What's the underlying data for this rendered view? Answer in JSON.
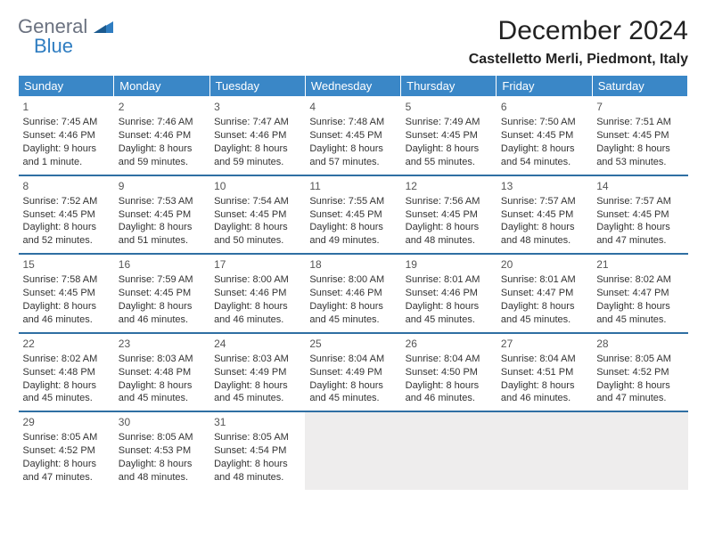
{
  "logo": {
    "general": "General",
    "blue": "Blue"
  },
  "title": "December 2024",
  "location": "Castelletto Merli, Piedmont, Italy",
  "colors": {
    "header_bg": "#3a87c7",
    "header_text": "#ffffff",
    "row_border": "#2f6fa3",
    "empty_bg": "#eeeded",
    "logo_gray": "#6b7280",
    "logo_blue": "#2f7dc1"
  },
  "weekdays": [
    "Sunday",
    "Monday",
    "Tuesday",
    "Wednesday",
    "Thursday",
    "Friday",
    "Saturday"
  ],
  "weeks": [
    [
      {
        "day": "1",
        "sunrise": "Sunrise: 7:45 AM",
        "sunset": "Sunset: 4:46 PM",
        "daylight": "Daylight: 9 hours and 1 minute."
      },
      {
        "day": "2",
        "sunrise": "Sunrise: 7:46 AM",
        "sunset": "Sunset: 4:46 PM",
        "daylight": "Daylight: 8 hours and 59 minutes."
      },
      {
        "day": "3",
        "sunrise": "Sunrise: 7:47 AM",
        "sunset": "Sunset: 4:46 PM",
        "daylight": "Daylight: 8 hours and 59 minutes."
      },
      {
        "day": "4",
        "sunrise": "Sunrise: 7:48 AM",
        "sunset": "Sunset: 4:45 PM",
        "daylight": "Daylight: 8 hours and 57 minutes."
      },
      {
        "day": "5",
        "sunrise": "Sunrise: 7:49 AM",
        "sunset": "Sunset: 4:45 PM",
        "daylight": "Daylight: 8 hours and 55 minutes."
      },
      {
        "day": "6",
        "sunrise": "Sunrise: 7:50 AM",
        "sunset": "Sunset: 4:45 PM",
        "daylight": "Daylight: 8 hours and 54 minutes."
      },
      {
        "day": "7",
        "sunrise": "Sunrise: 7:51 AM",
        "sunset": "Sunset: 4:45 PM",
        "daylight": "Daylight: 8 hours and 53 minutes."
      }
    ],
    [
      {
        "day": "8",
        "sunrise": "Sunrise: 7:52 AM",
        "sunset": "Sunset: 4:45 PM",
        "daylight": "Daylight: 8 hours and 52 minutes."
      },
      {
        "day": "9",
        "sunrise": "Sunrise: 7:53 AM",
        "sunset": "Sunset: 4:45 PM",
        "daylight": "Daylight: 8 hours and 51 minutes."
      },
      {
        "day": "10",
        "sunrise": "Sunrise: 7:54 AM",
        "sunset": "Sunset: 4:45 PM",
        "daylight": "Daylight: 8 hours and 50 minutes."
      },
      {
        "day": "11",
        "sunrise": "Sunrise: 7:55 AM",
        "sunset": "Sunset: 4:45 PM",
        "daylight": "Daylight: 8 hours and 49 minutes."
      },
      {
        "day": "12",
        "sunrise": "Sunrise: 7:56 AM",
        "sunset": "Sunset: 4:45 PM",
        "daylight": "Daylight: 8 hours and 48 minutes."
      },
      {
        "day": "13",
        "sunrise": "Sunrise: 7:57 AM",
        "sunset": "Sunset: 4:45 PM",
        "daylight": "Daylight: 8 hours and 48 minutes."
      },
      {
        "day": "14",
        "sunrise": "Sunrise: 7:57 AM",
        "sunset": "Sunset: 4:45 PM",
        "daylight": "Daylight: 8 hours and 47 minutes."
      }
    ],
    [
      {
        "day": "15",
        "sunrise": "Sunrise: 7:58 AM",
        "sunset": "Sunset: 4:45 PM",
        "daylight": "Daylight: 8 hours and 46 minutes."
      },
      {
        "day": "16",
        "sunrise": "Sunrise: 7:59 AM",
        "sunset": "Sunset: 4:45 PM",
        "daylight": "Daylight: 8 hours and 46 minutes."
      },
      {
        "day": "17",
        "sunrise": "Sunrise: 8:00 AM",
        "sunset": "Sunset: 4:46 PM",
        "daylight": "Daylight: 8 hours and 46 minutes."
      },
      {
        "day": "18",
        "sunrise": "Sunrise: 8:00 AM",
        "sunset": "Sunset: 4:46 PM",
        "daylight": "Daylight: 8 hours and 45 minutes."
      },
      {
        "day": "19",
        "sunrise": "Sunrise: 8:01 AM",
        "sunset": "Sunset: 4:46 PM",
        "daylight": "Daylight: 8 hours and 45 minutes."
      },
      {
        "day": "20",
        "sunrise": "Sunrise: 8:01 AM",
        "sunset": "Sunset: 4:47 PM",
        "daylight": "Daylight: 8 hours and 45 minutes."
      },
      {
        "day": "21",
        "sunrise": "Sunrise: 8:02 AM",
        "sunset": "Sunset: 4:47 PM",
        "daylight": "Daylight: 8 hours and 45 minutes."
      }
    ],
    [
      {
        "day": "22",
        "sunrise": "Sunrise: 8:02 AM",
        "sunset": "Sunset: 4:48 PM",
        "daylight": "Daylight: 8 hours and 45 minutes."
      },
      {
        "day": "23",
        "sunrise": "Sunrise: 8:03 AM",
        "sunset": "Sunset: 4:48 PM",
        "daylight": "Daylight: 8 hours and 45 minutes."
      },
      {
        "day": "24",
        "sunrise": "Sunrise: 8:03 AM",
        "sunset": "Sunset: 4:49 PM",
        "daylight": "Daylight: 8 hours and 45 minutes."
      },
      {
        "day": "25",
        "sunrise": "Sunrise: 8:04 AM",
        "sunset": "Sunset: 4:49 PM",
        "daylight": "Daylight: 8 hours and 45 minutes."
      },
      {
        "day": "26",
        "sunrise": "Sunrise: 8:04 AM",
        "sunset": "Sunset: 4:50 PM",
        "daylight": "Daylight: 8 hours and 46 minutes."
      },
      {
        "day": "27",
        "sunrise": "Sunrise: 8:04 AM",
        "sunset": "Sunset: 4:51 PM",
        "daylight": "Daylight: 8 hours and 46 minutes."
      },
      {
        "day": "28",
        "sunrise": "Sunrise: 8:05 AM",
        "sunset": "Sunset: 4:52 PM",
        "daylight": "Daylight: 8 hours and 47 minutes."
      }
    ],
    [
      {
        "day": "29",
        "sunrise": "Sunrise: 8:05 AM",
        "sunset": "Sunset: 4:52 PM",
        "daylight": "Daylight: 8 hours and 47 minutes."
      },
      {
        "day": "30",
        "sunrise": "Sunrise: 8:05 AM",
        "sunset": "Sunset: 4:53 PM",
        "daylight": "Daylight: 8 hours and 48 minutes."
      },
      {
        "day": "31",
        "sunrise": "Sunrise: 8:05 AM",
        "sunset": "Sunset: 4:54 PM",
        "daylight": "Daylight: 8 hours and 48 minutes."
      },
      {
        "empty": true
      },
      {
        "empty": true
      },
      {
        "empty": true
      },
      {
        "empty": true
      }
    ]
  ]
}
